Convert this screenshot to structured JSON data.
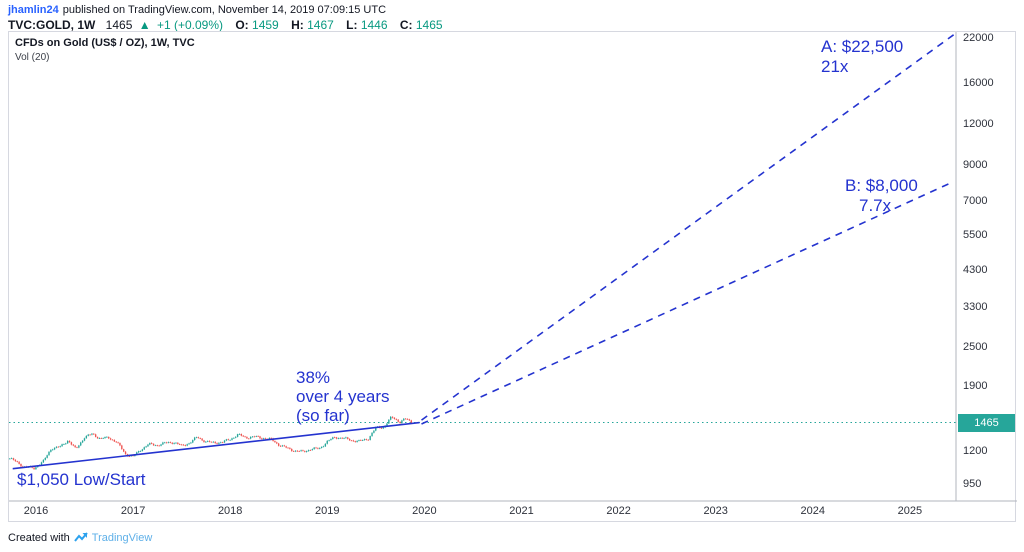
{
  "publish_line": {
    "username": "jhamlin24",
    "text": "published on TradingView.com, November 14, 2019 07:09:15 UTC"
  },
  "symbol_bar": {
    "symbol": "TVC:GOLD, 1W",
    "price": "1465",
    "up_arrow": "▲",
    "change": "+1 (+0.09%)",
    "ohlc": [
      {
        "label": "O:",
        "value": "1459"
      },
      {
        "label": "H:",
        "value": "1467"
      },
      {
        "label": "L:",
        "value": "1446"
      },
      {
        "label": "C:",
        "value": "1465"
      }
    ]
  },
  "legend": {
    "title": "CFDs on Gold (US$ / OZ), 1W, TVC",
    "vol_label": "Vol (20)"
  },
  "footer": {
    "created_with": "Created with",
    "brand": "TradingView"
  },
  "chart_data": {
    "type": "candlestick",
    "symbol": "TVC:GOLD",
    "interval": "1W",
    "title": "CFDs on Gold (US$ / OZ), 1W, TVC",
    "y_scale": "log",
    "y_ticks": [
      22000,
      16000,
      12000,
      9000,
      7000,
      5500,
      4300,
      3300,
      2500,
      1900,
      1200,
      950
    ],
    "x_ticks": [
      2016,
      2017,
      2018,
      2019,
      2020,
      2021,
      2022,
      2023,
      2024,
      2025
    ],
    "current_price": 1465,
    "price_anchors": [
      [
        2015.73,
        1140
      ],
      [
        2015.87,
        1075
      ],
      [
        2015.98,
        1061
      ],
      [
        2016.08,
        1118
      ],
      [
        2016.16,
        1223
      ],
      [
        2016.25,
        1234
      ],
      [
        2016.33,
        1293
      ],
      [
        2016.41,
        1212
      ],
      [
        2016.5,
        1322
      ],
      [
        2016.58,
        1351
      ],
      [
        2016.66,
        1309
      ],
      [
        2016.75,
        1316
      ],
      [
        2016.83,
        1277
      ],
      [
        2016.92,
        1173
      ],
      [
        2017.0,
        1152
      ],
      [
        2017.08,
        1211
      ],
      [
        2017.16,
        1257
      ],
      [
        2017.25,
        1249
      ],
      [
        2017.33,
        1268
      ],
      [
        2017.42,
        1275
      ],
      [
        2017.5,
        1242
      ],
      [
        2017.58,
        1269
      ],
      [
        2017.66,
        1321
      ],
      [
        2017.75,
        1280
      ],
      [
        2017.83,
        1271
      ],
      [
        2017.92,
        1275
      ],
      [
        2018.0,
        1303
      ],
      [
        2018.08,
        1345
      ],
      [
        2018.16,
        1318
      ],
      [
        2018.25,
        1325
      ],
      [
        2018.33,
        1315
      ],
      [
        2018.42,
        1301
      ],
      [
        2018.5,
        1253
      ],
      [
        2018.58,
        1224
      ],
      [
        2018.66,
        1201
      ],
      [
        2018.75,
        1192
      ],
      [
        2018.83,
        1215
      ],
      [
        2018.92,
        1220
      ],
      [
        2019.0,
        1282
      ],
      [
        2019.08,
        1321
      ],
      [
        2019.16,
        1313
      ],
      [
        2019.25,
        1292
      ],
      [
        2019.33,
        1284
      ],
      [
        2019.42,
        1306
      ],
      [
        2019.5,
        1410
      ],
      [
        2019.58,
        1418
      ],
      [
        2019.66,
        1520
      ],
      [
        2019.75,
        1472
      ],
      [
        2019.8,
        1505
      ],
      [
        2019.87,
        1465
      ]
    ],
    "trend_line": {
      "from": [
        2015.76,
        1058
      ],
      "to": [
        2019.95,
        1465
      ],
      "style": "solid"
    },
    "projections": [
      {
        "id": "A",
        "label": "A: $22,500",
        "multiple": "21x",
        "from": [
          2019.97,
          1490
        ],
        "to": [
          2025.45,
          22500
        ],
        "style": "dashed"
      },
      {
        "id": "B",
        "label": "B: $8,000",
        "multiple": "7.7x",
        "from": [
          2019.97,
          1450
        ],
        "to": [
          2025.45,
          8000
        ],
        "style": "dashed"
      }
    ],
    "annotations": {
      "gain": {
        "lines": [
          "38%",
          "over 4 years",
          "(so far)"
        ]
      },
      "low": {
        "text": "$1,050 Low/Start"
      }
    },
    "colors": {
      "up": "#26a69a",
      "down": "#ef5350",
      "drawing": "#2433cf",
      "price_line": "#26a69a",
      "change_green": "#089981"
    }
  }
}
